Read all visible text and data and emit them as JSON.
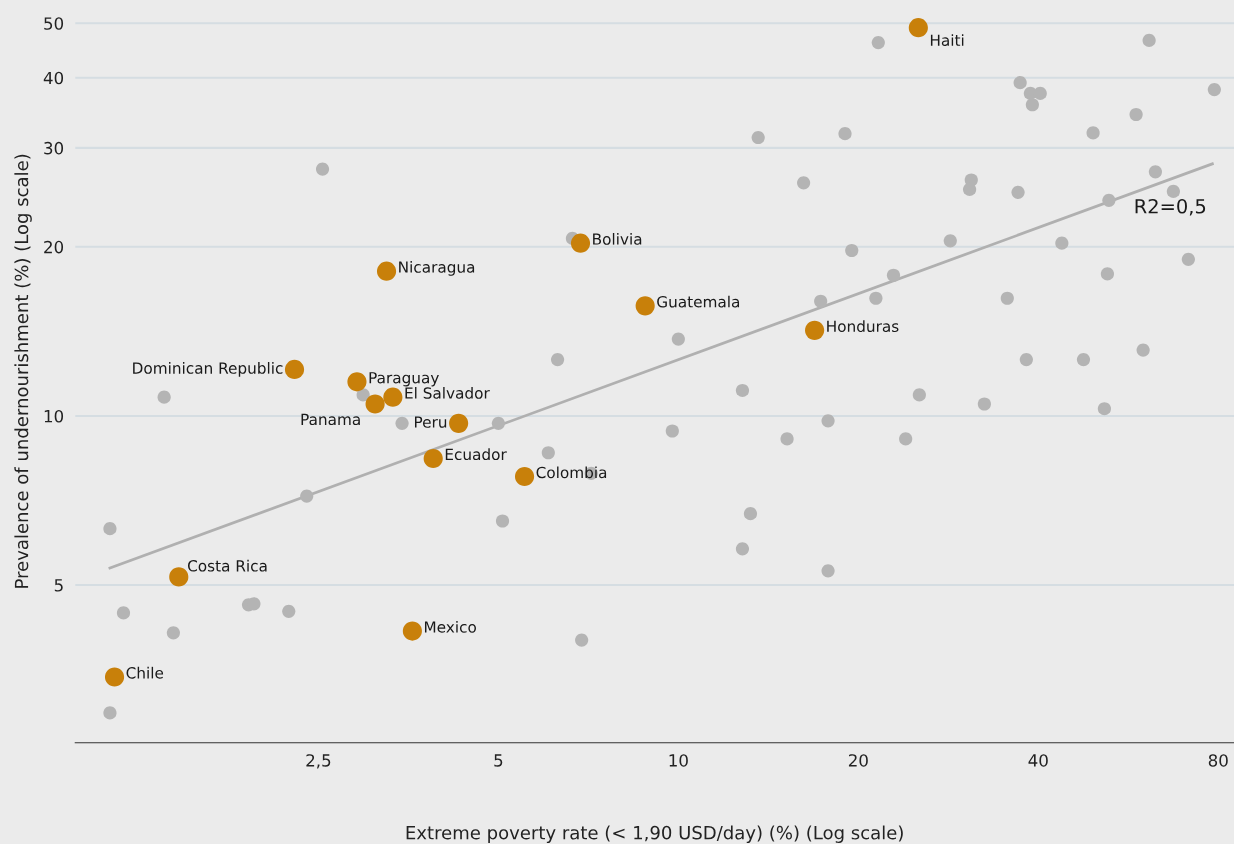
{
  "chart_data": {
    "type": "scatter",
    "xlabel": "Extreme poverty rate (< 1,90 USD/day) (%) (Log scale)",
    "ylabel": "Prevalence of undernourishment (%) (Log scale)",
    "log": "xy",
    "grid": "y",
    "marker": "circle",
    "xlim": [
      0.98,
      85
    ],
    "ylim": [
      2.62,
      55
    ],
    "xticks": [
      {
        "value": 2.5,
        "label": "2,5"
      },
      5,
      10,
      20,
      40,
      80
    ],
    "yticks": [
      5,
      10,
      20,
      30,
      40,
      50
    ],
    "series": [
      {
        "color": "#b4b4b4",
        "x": [
          21.6,
          61.3,
          37.3,
          38.8,
          40.3,
          39.1,
          78.8,
          13.6,
          19.0,
          49.4,
          58.3,
          2.54,
          16.2,
          30.9,
          30.7,
          37.0,
          52.5,
          67.3,
          62.8,
          6.65,
          19.5,
          28.5,
          43.8,
          71.3,
          22.9,
          17.3,
          21.4,
          52.2,
          35.5,
          10.0,
          6.28,
          47.6,
          38.2,
          59.9,
          1.38,
          2.97,
          12.8,
          25.3,
          32.5,
          51.6,
          3.45,
          5.0,
          17.8,
          9.77,
          15.2,
          24.0,
          6.06,
          7.15,
          2.39,
          1.12,
          5.08,
          13.2,
          12.8,
          17.8,
          1.18,
          1.91,
          1.95,
          2.23,
          1.43,
          6.89,
          1.12
        ],
        "values": [
          46.2,
          46.6,
          39.2,
          37.5,
          37.5,
          35.8,
          38.1,
          31.3,
          31.8,
          31.9,
          34.4,
          27.5,
          26.0,
          26.3,
          25.3,
          25.0,
          24.2,
          25.1,
          27.2,
          20.7,
          19.7,
          20.5,
          20.3,
          19.0,
          17.8,
          16.0,
          16.2,
          17.9,
          16.2,
          13.7,
          12.6,
          12.6,
          12.6,
          13.1,
          10.8,
          10.9,
          11.1,
          10.9,
          10.5,
          10.3,
          9.7,
          9.7,
          9.8,
          9.4,
          9.1,
          9.1,
          8.6,
          7.9,
          7.2,
          6.3,
          6.5,
          6.7,
          5.8,
          5.3,
          4.46,
          4.61,
          4.63,
          4.49,
          4.11,
          3.99,
          2.96
        ]
      },
      {
        "type": "line",
        "marker": "none",
        "color": "#b0b0b0",
        "x": [
          1.12,
          78.2
        ],
        "values": [
          5.36,
          28.1
        ]
      },
      {
        "color": "#c8800a",
        "x": [
          25.2,
          6.86,
          3.25,
          8.8,
          16.9,
          2.28,
          2.9,
          3.33,
          3.11,
          4.29,
          3.89,
          5.53,
          1.46,
          3.59,
          1.14
        ],
        "values": [
          49.1,
          20.3,
          18.1,
          15.7,
          14.2,
          12.1,
          11.5,
          10.8,
          10.5,
          9.7,
          8.4,
          7.8,
          5.17,
          4.14,
          3.43
        ]
      }
    ],
    "annotations": [
      {
        "text": "Haiti",
        "x": 25.2,
        "y": 49.1
      },
      {
        "text": "Bolivia",
        "x": 6.86,
        "y": 20.3
      },
      {
        "text": "Nicaragua",
        "x": 3.25,
        "y": 18.1
      },
      {
        "text": "Guatemala",
        "x": 8.8,
        "y": 15.7
      },
      {
        "text": "Honduras",
        "x": 16.9,
        "y": 14.2
      },
      {
        "text": "Dominican Republic",
        "x": 2.28,
        "y": 12.1
      },
      {
        "text": "Paraguay",
        "x": 2.9,
        "y": 11.5
      },
      {
        "text": "El Salvador",
        "x": 3.33,
        "y": 10.8
      },
      {
        "text": "Panama",
        "x": 3.11,
        "y": 10.5
      },
      {
        "text": "Peru",
        "x": 4.29,
        "y": 9.7
      },
      {
        "text": "Ecuador",
        "x": 3.89,
        "y": 8.4
      },
      {
        "text": "Colombia",
        "x": 5.53,
        "y": 7.8
      },
      {
        "text": "Costa Rica",
        "x": 1.46,
        "y": 5.17
      },
      {
        "text": "Mexico",
        "x": 3.59,
        "y": 4.14
      },
      {
        "text": "Chile",
        "x": 1.14,
        "y": 3.43
      },
      "R2=0,5"
    ]
  }
}
